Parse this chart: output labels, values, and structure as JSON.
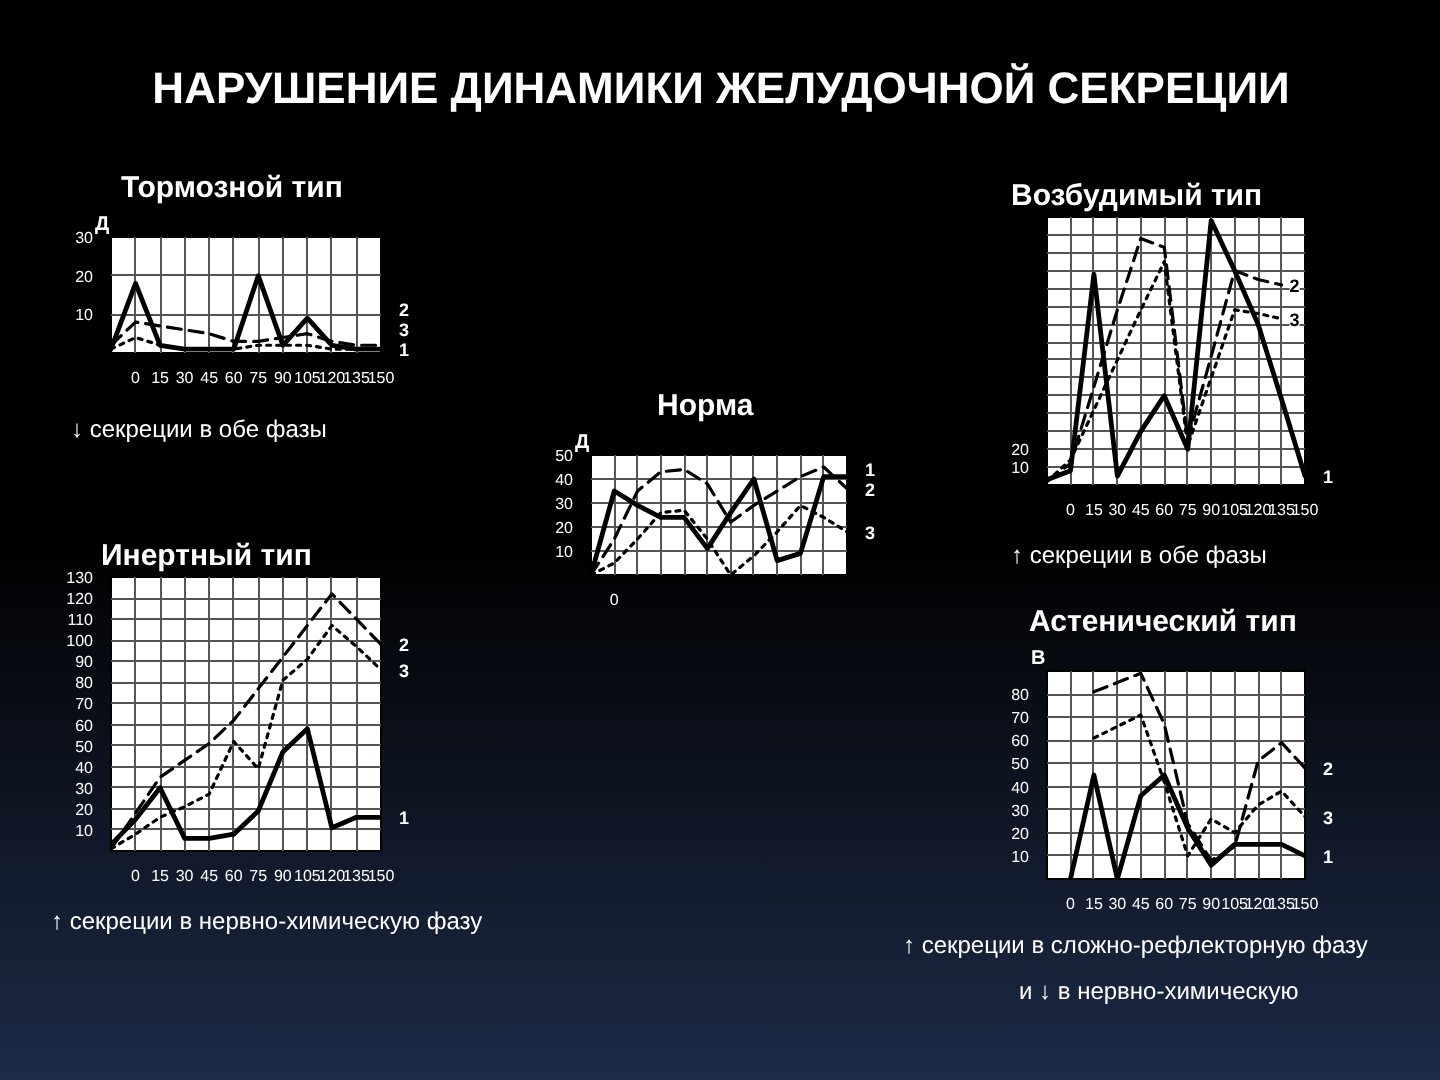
{
  "chart_data": [
    {
      "type": "other",
      "title": "НАРУШЕНИЕ ДИНАМИКИ ЖЕЛУДОЧНОЙ СЕКРЕЦИИ"
    },
    {
      "type": "line",
      "title": "Тормозной тип",
      "ylabel": "Д",
      "annotations": [
        "↓ секреции в обе фазы"
      ],
      "x": [
        -15,
        0,
        15,
        30,
        45,
        60,
        75,
        90,
        105,
        120,
        135,
        150
      ],
      "xlim": [
        -15,
        150
      ],
      "xticks": [
        0,
        15,
        30,
        45,
        60,
        75,
        90,
        105,
        120,
        135,
        150
      ],
      "ylim": [
        0,
        30
      ],
      "yticks": [
        10,
        20,
        30
      ],
      "grid": true,
      "series": [
        {
          "name": "1",
          "color": "#000000",
          "line_style": "solid",
          "values": [
            1,
            18,
            2,
            1,
            1,
            1,
            20,
            2,
            9,
            2,
            1,
            1
          ]
        },
        {
          "name": "2",
          "color": "#000000",
          "line_style": "dashed",
          "values": [
            2,
            8,
            7,
            6,
            5,
            3,
            3,
            4,
            5,
            3,
            2,
            2
          ]
        },
        {
          "name": "3",
          "color": "#000000",
          "line_style": "dotted",
          "values": [
            1,
            4,
            2,
            1,
            1,
            1,
            2,
            2,
            2,
            1,
            1,
            1
          ]
        }
      ]
    },
    {
      "type": "line",
      "title": "Возбудимый тип",
      "annotations": [
        "↑ секреции в обе фазы"
      ],
      "x": [
        -15,
        0,
        15,
        30,
        45,
        60,
        75,
        90,
        105,
        120,
        135,
        150
      ],
      "xlim": [
        -15,
        150
      ],
      "xticks": [
        0,
        15,
        30,
        45,
        60,
        75,
        90,
        105,
        120,
        135,
        150
      ],
      "ylim": [
        0,
        150
      ],
      "yticks": [
        10,
        20,
        {
          "value": 30,
          "label": null
        },
        {
          "value": 40,
          "label": null
        },
        {
          "value": 50,
          "label": null
        },
        {
          "value": 60,
          "label": null
        },
        {
          "value": 70,
          "label": null
        },
        {
          "value": 80,
          "label": null
        },
        {
          "value": 90,
          "label": null
        },
        {
          "value": 100,
          "label": null
        },
        {
          "value": 110,
          "label": null
        },
        {
          "value": 120,
          "label": null
        },
        {
          "value": 130,
          "label": null
        },
        {
          "value": 140,
          "label": null
        }
      ],
      "grid": true,
      "series": [
        {
          "name": "1",
          "color": "#000000",
          "line_style": "solid",
          "values": [
            3,
            8,
            118,
            5,
            30,
            50,
            20,
            148,
            120,
            90,
            48,
            5
          ]
        },
        {
          "name": "2",
          "color": "#000000",
          "line_style": "dashed",
          "values": [
            2,
            12,
            55,
            98,
            138,
            133,
            25,
            72,
            120,
            115,
            112,
            null
          ]
        },
        {
          "name": "3",
          "color": "#000000",
          "line_style": "dotted",
          "values": [
            2,
            14,
            42,
            70,
            98,
            125,
            22,
            60,
            98,
            96,
            93,
            null
          ]
        }
      ]
    },
    {
      "type": "line",
      "title": "Норма",
      "ylabel": "Д",
      "categories": [
        null,
        "0",
        null,
        null,
        null,
        null,
        null,
        null,
        null,
        null,
        null,
        null
      ],
      "ylim": [
        0,
        50
      ],
      "yticks": [
        10,
        20,
        30,
        40,
        50
      ],
      "grid": true,
      "series": [
        {
          "name": "1",
          "color": "#000000",
          "line_style": "solid",
          "values": [
            0,
            35,
            29,
            24,
            24,
            11,
            26,
            40,
            6,
            9,
            41,
            41
          ]
        },
        {
          "name": "2",
          "color": "#000000",
          "line_style": "dashed",
          "values": [
            0,
            15,
            35,
            43,
            44,
            38,
            22,
            29,
            35,
            41,
            45,
            36
          ]
        },
        {
          "name": "3",
          "color": "#000000",
          "line_style": "dotted",
          "values": [
            0,
            5,
            15,
            26,
            27,
            15,
            0,
            8,
            18,
            29,
            24,
            18
          ]
        }
      ]
    },
    {
      "type": "line",
      "title": "Инертный  тип",
      "annotations": [
        "↑ секреции в нервно-химическую фазу"
      ],
      "x": [
        -15,
        0,
        15,
        30,
        45,
        60,
        75,
        90,
        105,
        120,
        135,
        150
      ],
      "xlim": [
        -15,
        150
      ],
      "xticks": [
        0,
        15,
        30,
        45,
        60,
        75,
        90,
        105,
        120,
        135,
        150
      ],
      "ylim": [
        0,
        130
      ],
      "yticks": [
        10,
        20,
        30,
        40,
        50,
        60,
        70,
        80,
        90,
        100,
        110,
        120,
        130
      ],
      "grid": true,
      "series": [
        {
          "name": "1",
          "color": "#000000",
          "line_style": "solid",
          "values": [
            3,
            15,
            30,
            6,
            6,
            8,
            19,
            47,
            58,
            11,
            16,
            16
          ]
        },
        {
          "name": "2",
          "color": "#000000",
          "line_style": "dashed",
          "values": [
            1,
            18,
            35,
            43,
            51,
            62,
            77,
            92,
            107,
            122,
            110,
            98
          ]
        },
        {
          "name": "3",
          "color": "#000000",
          "line_style": "dotted",
          "values": [
            1,
            8,
            16,
            21,
            27,
            52,
            39,
            81,
            91,
            107,
            97,
            86
          ]
        }
      ]
    },
    {
      "type": "line",
      "title": "Астенический тип",
      "ylabel": "В",
      "annotations": [
        "↑ секреции в сложно-рефлекторную фазу",
        "и ↓ в нервно-химическую"
      ],
      "x": [
        0,
        15,
        30,
        45,
        60,
        75,
        90,
        105,
        120,
        135,
        150
      ],
      "xlim": [
        -15,
        150
      ],
      "xticks": [
        0,
        15,
        30,
        45,
        60,
        75,
        90,
        105,
        120,
        135,
        150
      ],
      "ylim": [
        0,
        90
      ],
      "yticks": [
        10,
        20,
        30,
        40,
        50,
        60,
        70,
        80
      ],
      "grid": true,
      "series": [
        {
          "name": "1",
          "color": "#000000",
          "line_style": "solid",
          "values": [
            0,
            45,
            0,
            36,
            45,
            22,
            6,
            15,
            15,
            15,
            10
          ]
        },
        {
          "name": "2",
          "color": "#000000",
          "line_style": "dashed",
          "values": [
            null,
            81,
            85,
            89,
            67,
            24,
            8,
            14,
            51,
            59,
            48
          ]
        },
        {
          "name": "3",
          "color": "#000000",
          "line_style": "dotted",
          "values": [
            null,
            61,
            66,
            71,
            42,
            10,
            26,
            20,
            32,
            38,
            27
          ]
        }
      ]
    }
  ]
}
